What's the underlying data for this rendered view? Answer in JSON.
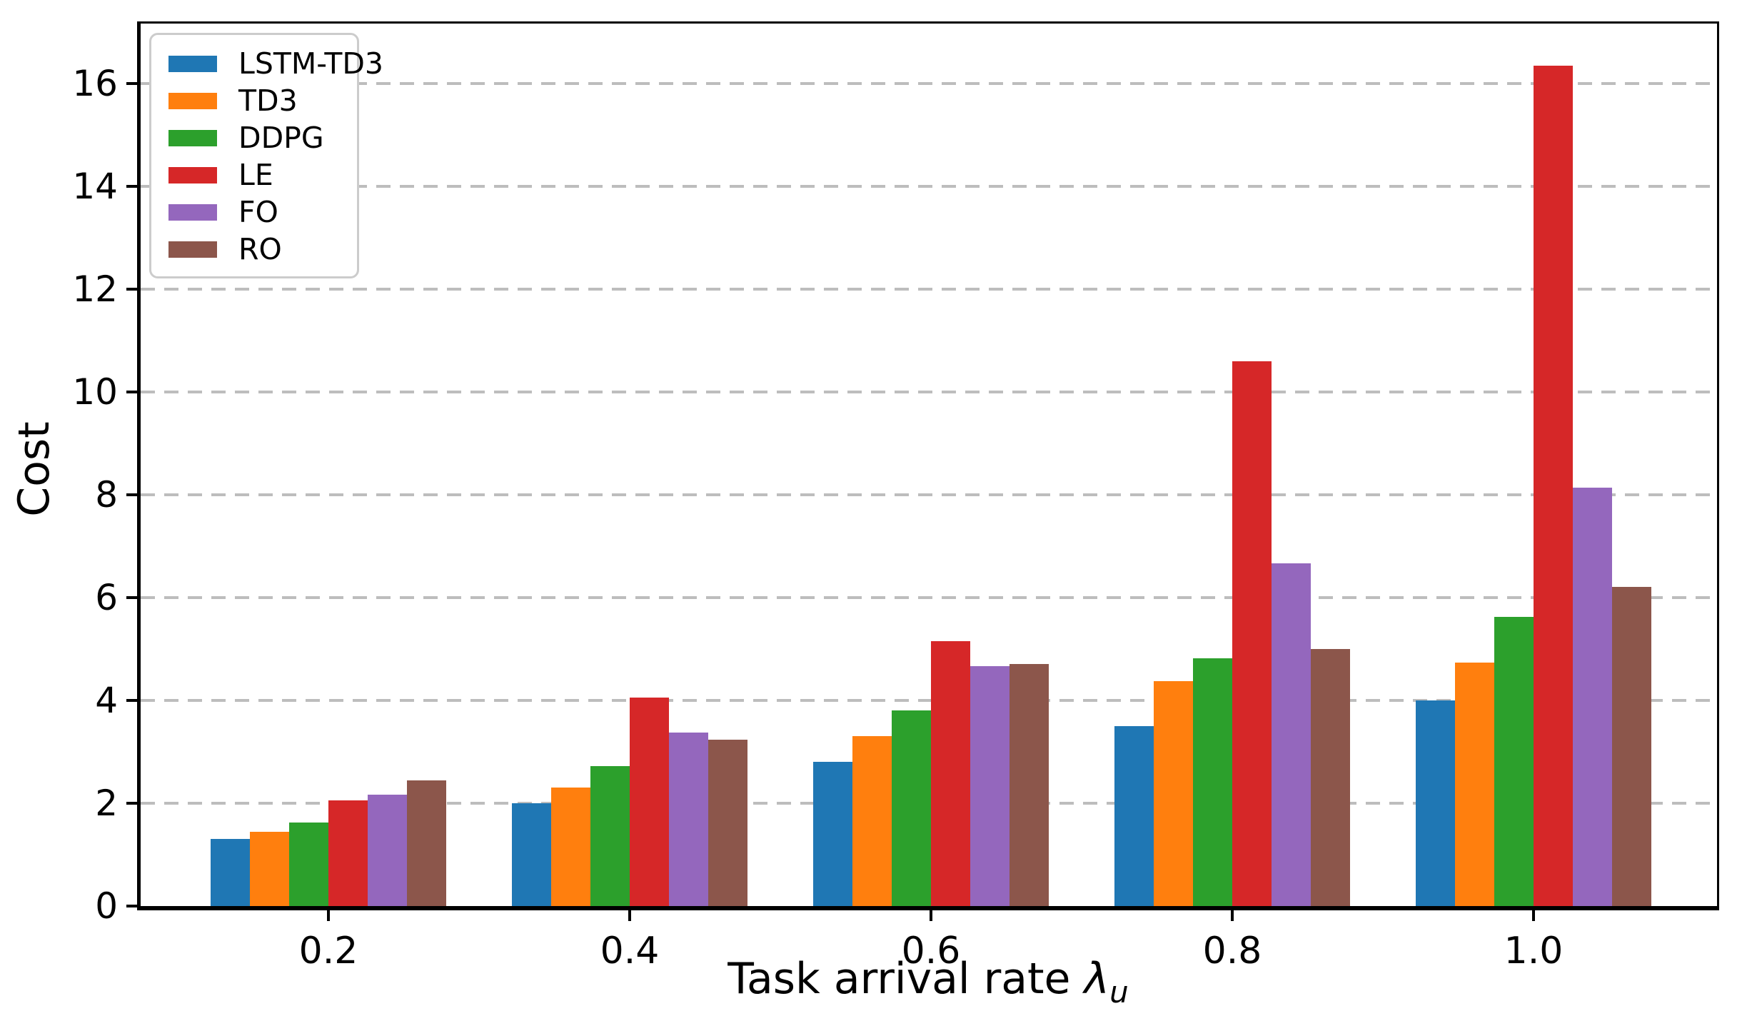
{
  "chart_data": {
    "type": "bar",
    "title": "",
    "ylabel": "Cost",
    "xlabel_prefix": "Task arrival rate ",
    "xlabel_symbol": "λ",
    "xlabel_subscript": "u",
    "categories": [
      "0.2",
      "0.4",
      "0.6",
      "0.8",
      "1.0"
    ],
    "yticks": [
      0,
      2,
      4,
      6,
      8,
      10,
      12,
      14,
      16
    ],
    "ylim": [
      0,
      17.16
    ],
    "grid": "horizontal-dashed",
    "legend_position": "upper-left",
    "series": [
      {
        "name": "LSTM-TD3",
        "color": "#1f77b4",
        "values": [
          1.31,
          2.0,
          2.81,
          3.5,
          4.0
        ]
      },
      {
        "name": "TD3",
        "color": "#ff7f0e",
        "values": [
          1.44,
          2.3,
          3.3,
          4.37,
          4.74
        ]
      },
      {
        "name": "DDPG",
        "color": "#2ca02c",
        "values": [
          1.63,
          2.72,
          3.8,
          4.82,
          5.62
        ]
      },
      {
        "name": "LE",
        "color": "#d62728",
        "values": [
          2.06,
          4.05,
          5.15,
          10.6,
          16.34
        ]
      },
      {
        "name": "FO",
        "color": "#9467bd",
        "values": [
          2.17,
          3.38,
          4.67,
          6.67,
          8.13
        ]
      },
      {
        "name": "RO",
        "color": "#8c564b",
        "values": [
          2.44,
          3.24,
          4.71,
          5.0,
          6.2
        ]
      }
    ]
  },
  "colors": {
    "grid": "#bdbdbd",
    "spine": "#000000",
    "background": "#ffffff",
    "legend_border": "#cccccc"
  }
}
